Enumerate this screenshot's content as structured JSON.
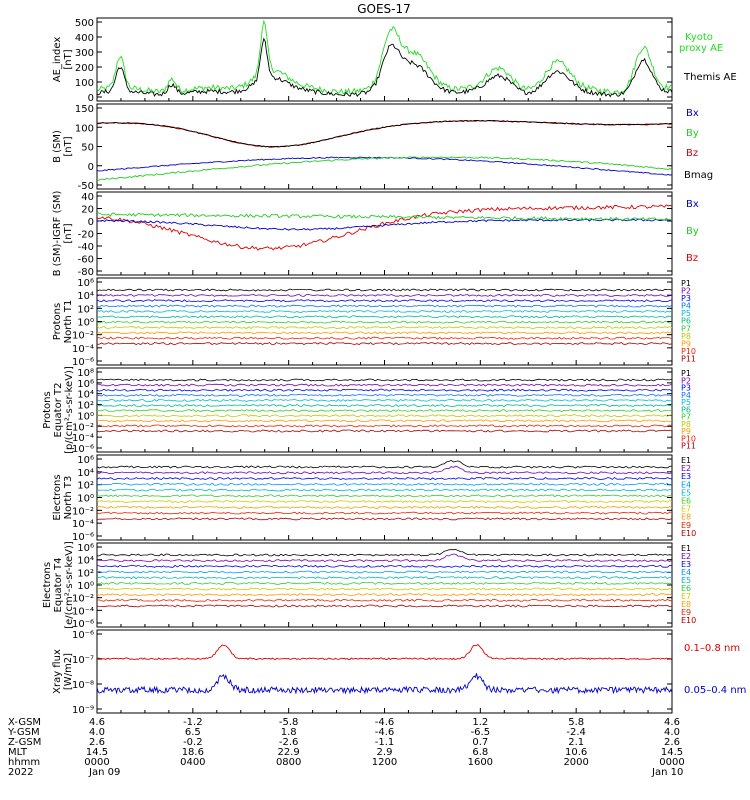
{
  "chart_data": {
    "type": "line",
    "title": "GOES-17",
    "panels": [
      {
        "ylabel": [
          "AE_index",
          "[nT]"
        ],
        "ticks": [
          "500",
          "400",
          "300",
          "200",
          "100",
          "0"
        ],
        "legend": [
          {
            "name": "Kyoto\nproxy AE",
            "color": "#22dd22"
          },
          {
            "name": "Themis AE",
            "color": "#000000"
          }
        ]
      },
      {
        "ylabel": [
          "B (SM)",
          "[nT]"
        ],
        "ticks": [
          "150",
          "100",
          "50",
          "0",
          "-50"
        ],
        "legend": [
          {
            "name": "Bx",
            "color": "#0000cc"
          },
          {
            "name": "By",
            "color": "#22cc22"
          },
          {
            "name": "Bz",
            "color": "#dd0000"
          },
          {
            "name": "Bmag",
            "color": "#000000"
          }
        ]
      },
      {
        "ylabel": [
          "B (SM)-IGRF (SM)",
          "[nT]"
        ],
        "ticks": [
          "40",
          "20",
          "0",
          "-20",
          "-40",
          "-60",
          "-80"
        ],
        "legend": [
          {
            "name": "Bx",
            "color": "#0000cc"
          },
          {
            "name": "By",
            "color": "#22cc22"
          },
          {
            "name": "Bz",
            "color": "#dd0000"
          }
        ]
      },
      {
        "ylabel": [
          "Protons",
          "North T1"
        ],
        "ticks": [
          "10⁶",
          "10⁴",
          "10²",
          "10⁰",
          "10⁻²",
          "10⁻⁴",
          "10⁻⁶"
        ],
        "legend": [
          {
            "name": "P1",
            "color": "#000000"
          },
          {
            "name": "P2",
            "color": "#7700aa"
          },
          {
            "name": "P3",
            "color": "#0000ee"
          },
          {
            "name": "P4",
            "color": "#0077ff"
          },
          {
            "name": "P5",
            "color": "#00bbdd"
          },
          {
            "name": "P6",
            "color": "#00bb88"
          },
          {
            "name": "P7",
            "color": "#33cc33"
          },
          {
            "name": "P8",
            "color": "#bbcc00"
          },
          {
            "name": "P9",
            "color": "#ff9900"
          },
          {
            "name": "P10",
            "color": "#ee2200"
          },
          {
            "name": "P11",
            "color": "#aa0000"
          }
        ]
      },
      {
        "ylabel": [
          "Protons",
          "Equator T2",
          "[p/(cm²-s-sr-keV)]"
        ],
        "ticks": [
          "10⁸",
          "10⁶",
          "10⁴",
          "10²",
          "10⁰",
          "10⁻²",
          "10⁻⁴",
          "10⁻⁶"
        ],
        "legend": [
          {
            "name": "P1",
            "color": "#000000"
          },
          {
            "name": "P2",
            "color": "#7700aa"
          },
          {
            "name": "P3",
            "color": "#0000ee"
          },
          {
            "name": "P4",
            "color": "#0077ff"
          },
          {
            "name": "P5",
            "color": "#00bbdd"
          },
          {
            "name": "P6",
            "color": "#00bb88"
          },
          {
            "name": "P7",
            "color": "#33cc33"
          },
          {
            "name": "P8",
            "color": "#bbcc00"
          },
          {
            "name": "P9",
            "color": "#ff9900"
          },
          {
            "name": "P10",
            "color": "#ee2200"
          },
          {
            "name": "P11",
            "color": "#aa0000"
          }
        ]
      },
      {
        "ylabel": [
          "Electrons",
          "North T3"
        ],
        "ticks": [
          "10⁶",
          "10⁴",
          "10²",
          "10⁰",
          "10⁻²",
          "10⁻⁴",
          "10⁻⁶"
        ],
        "legend": [
          {
            "name": "E1",
            "color": "#000000"
          },
          {
            "name": "E2",
            "color": "#7700aa"
          },
          {
            "name": "E3",
            "color": "#0000ee"
          },
          {
            "name": "E4",
            "color": "#0099ff"
          },
          {
            "name": "E5",
            "color": "#00bbbb"
          },
          {
            "name": "E6",
            "color": "#33cc33"
          },
          {
            "name": "E7",
            "color": "#cccc00"
          },
          {
            "name": "E8",
            "color": "#ff9900"
          },
          {
            "name": "E9",
            "color": "#ee2200"
          },
          {
            "name": "E10",
            "color": "#aa0000"
          }
        ]
      },
      {
        "ylabel": [
          "Electrons",
          "Equator T4",
          "[e/(cm²-s-sr-keV)]"
        ],
        "ticks": [
          "10⁶",
          "10⁴",
          "10²",
          "10⁰",
          "10⁻²",
          "10⁻⁴",
          "10⁻⁶"
        ],
        "legend": [
          {
            "name": "E1",
            "color": "#000000"
          },
          {
            "name": "E2",
            "color": "#7700aa"
          },
          {
            "name": "E3",
            "color": "#0000ee"
          },
          {
            "name": "E4",
            "color": "#0099ff"
          },
          {
            "name": "E5",
            "color": "#00bbbb"
          },
          {
            "name": "E6",
            "color": "#33cc33"
          },
          {
            "name": "E7",
            "color": "#cccc00"
          },
          {
            "name": "E8",
            "color": "#ff9900"
          },
          {
            "name": "E9",
            "color": "#ee2200"
          },
          {
            "name": "E10",
            "color": "#aa0000"
          }
        ]
      },
      {
        "ylabel": [
          "Xray flux",
          "[W/m2]"
        ],
        "ticks": [
          "10⁻⁶",
          "10⁻⁷",
          "10⁻⁸",
          "10⁻⁹"
        ],
        "legend": [
          {
            "name": "0.1–0.8 nm",
            "color": "#dd0000"
          },
          {
            "name": "0.05–0.4 nm",
            "color": "#0000cc"
          }
        ]
      }
    ],
    "xaxis": {
      "row_labels": [
        "X-GSM",
        "Y-GSM",
        "Z-GSM",
        "MLT",
        "hhmm",
        "2022"
      ],
      "columns": [
        [
          "4.6",
          "4.0",
          "2.6",
          "14.5",
          "0000",
          "Jan 09"
        ],
        [
          "-1.2",
          "6.5",
          "-0.2",
          "18.6",
          "0400",
          ""
        ],
        [
          "-5.8",
          "1.8",
          "-2.6",
          "22.9",
          "0800",
          ""
        ],
        [
          "-4.6",
          "-4.6",
          "-1.1",
          "2.9",
          "1200",
          ""
        ],
        [
          "1.2",
          "-6.5",
          "0.7",
          "6.8",
          "1600",
          ""
        ],
        [
          "5.8",
          "-2.4",
          "2.1",
          "10.6",
          "2000",
          ""
        ],
        [
          "4.6",
          "4.0",
          "2.6",
          "14.5",
          "0000",
          "Jan 10"
        ]
      ]
    }
  }
}
